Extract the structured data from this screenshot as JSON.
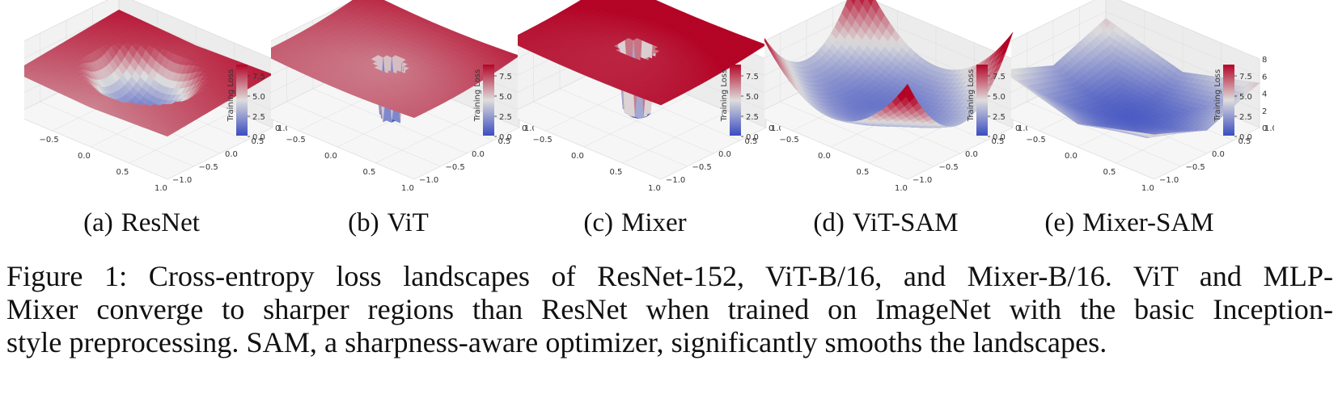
{
  "panels": [
    {
      "label": "(a)",
      "name": "ResNet",
      "surface": "resnet"
    },
    {
      "label": "(b)",
      "name": "ViT",
      "surface": "vit"
    },
    {
      "label": "(c)",
      "name": "Mixer",
      "surface": "mixer"
    },
    {
      "label": "(d)",
      "name": "ViT-SAM",
      "surface": "vitsam"
    },
    {
      "label": "(e)",
      "name": "Mixer-SAM",
      "surface": "mixersam"
    }
  ],
  "axes": {
    "x_ticks": [
      "−1.0",
      "−0.5",
      "0.0",
      "0.5",
      "1.0"
    ],
    "y_ticks": [
      "1.0",
      "0.5",
      "0.0",
      "−0.5",
      "−1.0"
    ],
    "z_ticks": [
      "0",
      "2",
      "4",
      "6",
      "8"
    ],
    "z_label": "Training Loss",
    "colorbar_ticks": [
      "7.5",
      "5.0",
      "2.5",
      "0.0"
    ]
  },
  "colormap": {
    "low": "#3b4cc0",
    "mid": "#dddddd",
    "high": "#b40426"
  },
  "caption": {
    "line1": "Figure 1: Cross-entropy loss landscapes of ResNet-152, ViT-B/16, and Mixer-B/16. ViT and MLP-",
    "line2": "Mixer converge to sharper regions than ResNet when trained on ImageNet with the basic Inception-",
    "line3": "style preprocessing. SAM, a sharpness-aware optimizer, significantly smooths the landscapes."
  }
}
